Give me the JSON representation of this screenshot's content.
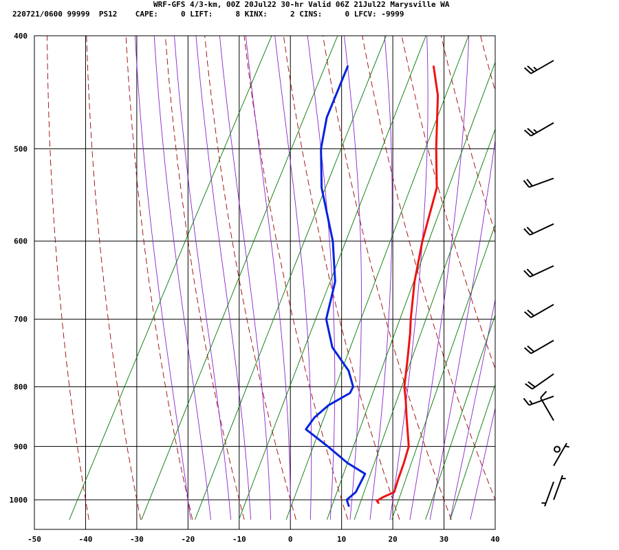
{
  "header": {
    "line1": "WRF-GFS 4/3-km, 00Z 20Jul22 30-hr Valid 06Z 21Jul22 Marysville WA",
    "line2": "220721/0600 99999  PS12    CAPE:     0 LIFT:     8 KINX:     2 CINS:     0 LFCV: -9999"
  },
  "chart_data": {
    "type": "line",
    "subtype": "skew-t log-p sounding",
    "x_axis": {
      "label": "",
      "ticks": [
        -50,
        -40,
        -30,
        -20,
        -10,
        0,
        10,
        20,
        30,
        40
      ],
      "xlim": [
        -50,
        40
      ]
    },
    "y_axis": {
      "label": "",
      "ticks": [
        400,
        500,
        600,
        700,
        800,
        900,
        1000
      ],
      "ylim": [
        400,
        1040
      ],
      "scale": "log"
    },
    "grid": true,
    "series": [
      {
        "color": "#ee1111",
        "points": [
          {
            "p": 1006,
            "t": 17.5
          },
          {
            "p": 1002,
            "t": 17.0
          },
          {
            "p": 995,
            "t": 17.8
          },
          {
            "p": 985,
            "t": 19.5
          },
          {
            "p": 960,
            "t": 19.0
          },
          {
            "p": 930,
            "t": 18.5
          },
          {
            "p": 900,
            "t": 17.8
          },
          {
            "p": 880,
            "t": 16.5
          },
          {
            "p": 850,
            "t": 14.5
          },
          {
            "p": 820,
            "t": 12.5
          },
          {
            "p": 800,
            "t": 11.0
          },
          {
            "p": 760,
            "t": 9.0
          },
          {
            "p": 720,
            "t": 6.8
          },
          {
            "p": 700,
            "t": 5.5
          },
          {
            "p": 650,
            "t": 2.5
          },
          {
            "p": 600,
            "t": 0.0
          },
          {
            "p": 540,
            "t": -2.5
          },
          {
            "p": 500,
            "t": -6.5
          },
          {
            "p": 450,
            "t": -11.5
          },
          {
            "p": 425,
            "t": -15.2
          }
        ]
      },
      {
        "color": "#0022dd",
        "points": [
          {
            "p": 1012,
            "t": 12.0
          },
          {
            "p": 1000,
            "t": 11.0
          },
          {
            "p": 985,
            "t": 12.0
          },
          {
            "p": 965,
            "t": 12.0
          },
          {
            "p": 950,
            "t": 12.0
          },
          {
            "p": 930,
            "t": 7.5
          },
          {
            "p": 900,
            "t": 2.0
          },
          {
            "p": 870,
            "t": -4.0
          },
          {
            "p": 850,
            "t": -3.5
          },
          {
            "p": 830,
            "t": -2.0
          },
          {
            "p": 810,
            "t": 1.0
          },
          {
            "p": 800,
            "t": 1.0
          },
          {
            "p": 775,
            "t": -1.5
          },
          {
            "p": 740,
            "t": -7.0
          },
          {
            "p": 700,
            "t": -11.0
          },
          {
            "p": 650,
            "t": -13.0
          },
          {
            "p": 600,
            "t": -17.5
          },
          {
            "p": 540,
            "t": -25.0
          },
          {
            "p": 500,
            "t": -29.0
          },
          {
            "p": 470,
            "t": -31.0
          },
          {
            "p": 425,
            "t": -32.0
          }
        ]
      }
    ],
    "isotherm_color": "#000000",
    "dry_adiabat_color": "#990000",
    "moist_adiabat_color": "#8822cc",
    "mixing_ratio_color": "#007700",
    "wind_barb_color": "#000000",
    "wind_barbs": [
      {
        "p": 420,
        "dir": 240,
        "spd": 25
      },
      {
        "p": 475,
        "dir": 240,
        "spd": 25
      },
      {
        "p": 530,
        "dir": 250,
        "spd": 20
      },
      {
        "p": 580,
        "dir": 245,
        "spd": 20
      },
      {
        "p": 630,
        "dir": 245,
        "spd": 20
      },
      {
        "p": 680,
        "dir": 240,
        "spd": 20
      },
      {
        "p": 730,
        "dir": 240,
        "spd": 20
      },
      {
        "p": 780,
        "dir": 235,
        "spd": 20
      },
      {
        "p": 815,
        "dir": 250,
        "spd": 15
      },
      {
        "p": 855,
        "dir": 330,
        "spd": 10
      },
      {
        "p": 905,
        "dir": 0,
        "spd": 0
      },
      {
        "p": 935,
        "dir": 30,
        "spd": 5
      },
      {
        "p": 965,
        "dir": 200,
        "spd": 5
      },
      {
        "p": 1000,
        "dir": 20,
        "spd": 5
      }
    ]
  }
}
